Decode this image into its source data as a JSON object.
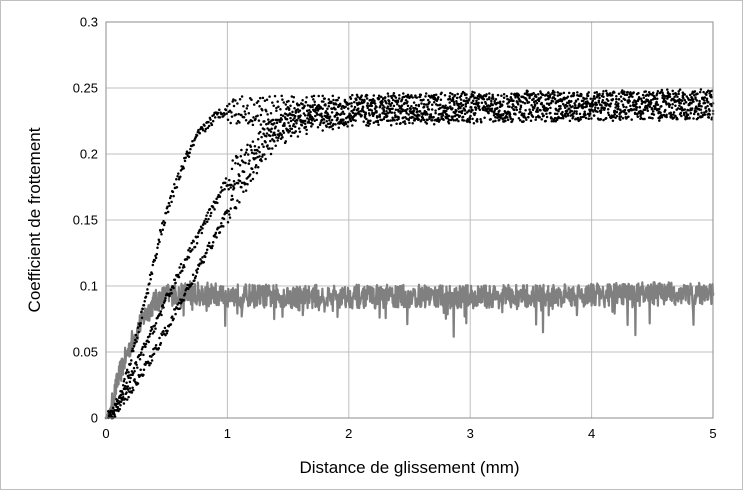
{
  "chart_data": {
    "type": "scatter",
    "title": "",
    "xlabel": "Distance de glissement (mm)",
    "ylabel": "Coefficient de frottement",
    "xlim": [
      0,
      5
    ],
    "ylim": [
      0,
      0.3
    ],
    "x_ticks": [
      "0",
      "1",
      "2",
      "3",
      "4",
      "5"
    ],
    "y_ticks": [
      "0",
      "0.05",
      "0.1",
      "0.15",
      "0.2",
      "0.25",
      "0.3"
    ],
    "grid": true,
    "legend": "none",
    "series": [
      {
        "style": "dots",
        "color": "#000000",
        "x": [
          0.05,
          0.15,
          0.25,
          0.35,
          0.45,
          0.55,
          0.65,
          0.75,
          0.85,
          0.95,
          1.05,
          1.2,
          1.5,
          2.0,
          2.5,
          3.0,
          3.5,
          4.0,
          4.5,
          5.0
        ],
        "y": [
          0.002,
          0.025,
          0.06,
          0.1,
          0.14,
          0.17,
          0.195,
          0.213,
          0.224,
          0.232,
          0.234,
          0.233,
          0.233,
          0.234,
          0.236,
          0.236,
          0.237,
          0.237,
          0.238,
          0.238
        ]
      },
      {
        "style": "dots",
        "color": "#000000",
        "x": [
          0.05,
          0.2,
          0.4,
          0.6,
          0.8,
          1.0,
          1.2,
          1.4,
          1.6,
          1.8,
          2.0,
          2.5,
          3.0,
          3.5,
          4.0,
          4.5,
          5.0
        ],
        "y": [
          0.002,
          0.03,
          0.07,
          0.11,
          0.145,
          0.18,
          0.205,
          0.222,
          0.228,
          0.231,
          0.232,
          0.234,
          0.235,
          0.236,
          0.236,
          0.237,
          0.237
        ]
      },
      {
        "style": "dots",
        "color": "#000000",
        "x": [
          0.05,
          0.2,
          0.4,
          0.6,
          0.8,
          1.0,
          1.2,
          1.4,
          1.6,
          1.8,
          2.0,
          2.5,
          3.0,
          3.5,
          4.0,
          4.5,
          5.0
        ],
        "y": [
          0.002,
          0.02,
          0.05,
          0.085,
          0.12,
          0.155,
          0.19,
          0.215,
          0.225,
          0.229,
          0.231,
          0.233,
          0.234,
          0.235,
          0.236,
          0.236,
          0.237
        ]
      },
      {
        "style": "line",
        "color": "#808080",
        "x": [
          0.0,
          0.05,
          0.1,
          0.2,
          0.3,
          0.4,
          0.5,
          0.6,
          0.7,
          0.8,
          1.0,
          1.5,
          2.0,
          2.5,
          3.0,
          3.5,
          4.0,
          4.5,
          5.0
        ],
        "y": [
          0.0,
          0.01,
          0.03,
          0.055,
          0.075,
          0.088,
          0.093,
          0.095,
          0.095,
          0.094,
          0.093,
          0.092,
          0.092,
          0.092,
          0.092,
          0.092,
          0.093,
          0.094,
          0.094
        ]
      }
    ]
  }
}
